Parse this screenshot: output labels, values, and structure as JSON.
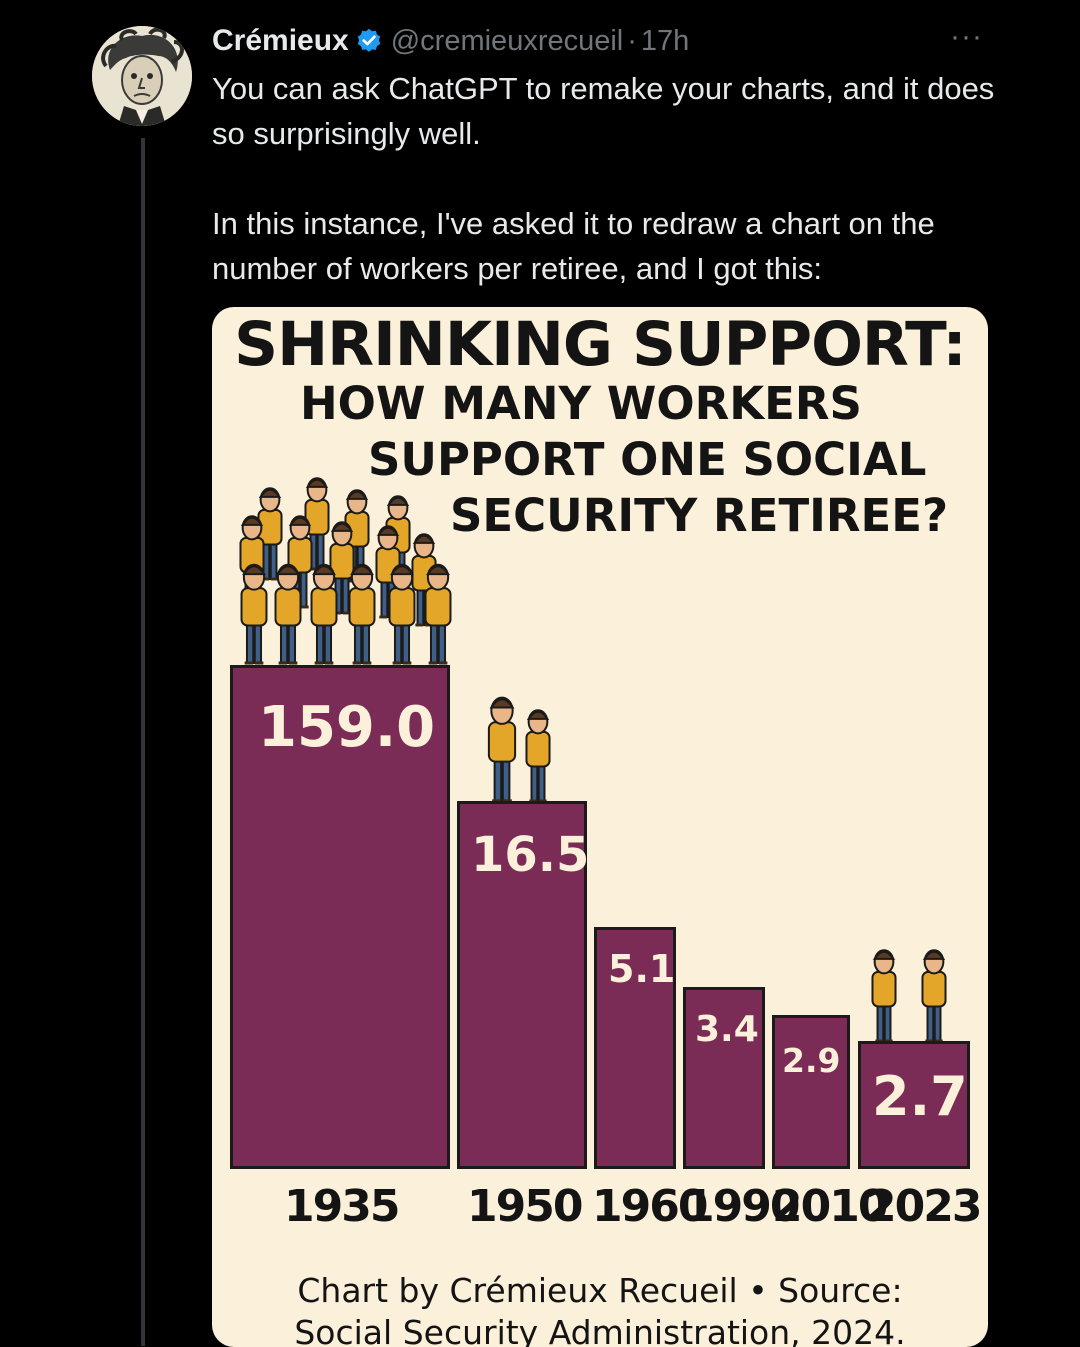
{
  "tweet": {
    "author_name": "Crémieux",
    "handle": "@cremieuxrecueil",
    "separator": "·",
    "time": "17h",
    "more_glyph": "···",
    "text_p1": "You can ask ChatGPT to remake your charts, and it does so surprisingly well.",
    "text_p2": "In this instance, I've asked it to redraw a chart on the number of workers per retiree, and I got this:"
  },
  "colors": {
    "background": "#000000",
    "text": "#e7e9ea",
    "secondary_text": "#71767b",
    "verified_badge": "#1d9bf0",
    "chart_background": "#fbf0d9",
    "bar_fill": "#7a2b56",
    "worker_shirt": "#e3a628",
    "worker_pants": "#3f5f86"
  },
  "chart_data": {
    "type": "bar",
    "title": "SHRINKING SUPPORT:",
    "subtitle_lines": [
      "HOW MANY WORKERS",
      "SUPPORT ONE SOCIAL",
      "SECURITY RETIREE?"
    ],
    "categories": [
      "1935",
      "1950",
      "1960",
      "1990",
      "2010",
      "2023"
    ],
    "values": [
      159.0,
      16.5,
      5.1,
      3.4,
      2.9,
      2.7
    ],
    "data_labels": [
      "159.0",
      "16.5",
      "5.1",
      "3.4",
      "2.9",
      "2.7"
    ],
    "footer_lines": [
      "Chart by Crémieux Recueil • Source:",
      "Social Security Administration, 2024."
    ],
    "xlabel": "",
    "ylabel": "",
    "grid": false,
    "legend": "none"
  }
}
